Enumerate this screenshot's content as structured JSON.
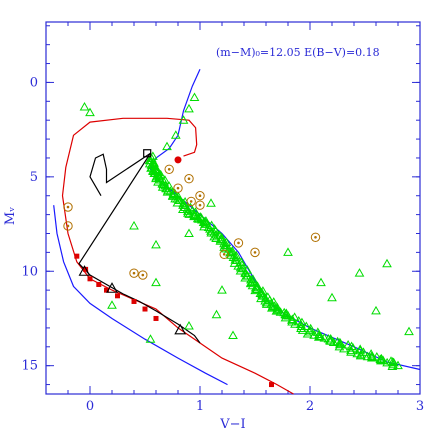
{
  "chart_data": {
    "type": "scatter",
    "title": "",
    "annotation": "(m−M)₀=12.05  E(B−V)=0.18",
    "xlabel": "V−I",
    "ylabel": "Mᵥ",
    "xlim": [
      -0.4,
      3.0
    ],
    "ylim": [
      16.5,
      -3.2
    ],
    "x_ticks": [
      0,
      1,
      2,
      3
    ],
    "y_ticks": [
      0,
      5,
      10,
      15
    ],
    "x_tick_labels": [
      "0",
      "1",
      "2",
      "3"
    ],
    "y_tick_labels": [
      "0",
      "5",
      "10",
      "15"
    ],
    "colors": {
      "axes": "#2b2bd6",
      "stars": "#00dd00",
      "isochrone_blue": "#1a1aff",
      "track_red": "#dd0000",
      "track_black": "#000000",
      "open_circles": "#b07000"
    },
    "series": [
      {
        "kind": "line",
        "color": "#1a1aff",
        "points": [
          [
            -0.33,
            6.5
          ],
          [
            -0.3,
            8.0
          ],
          [
            -0.24,
            9.5
          ],
          [
            -0.15,
            10.8
          ],
          [
            0.0,
            11.7
          ],
          [
            0.2,
            12.5
          ],
          [
            0.5,
            13.6
          ],
          [
            0.8,
            14.6
          ],
          [
            1.05,
            15.4
          ],
          [
            1.25,
            16.0
          ]
        ]
      },
      {
        "kind": "line",
        "color": "#1a1aff",
        "points": [
          [
            1.0,
            -0.7
          ],
          [
            0.93,
            0.2
          ],
          [
            0.85,
            1.5
          ],
          [
            0.8,
            2.8
          ],
          [
            0.72,
            3.5
          ],
          [
            0.6,
            4.0
          ],
          [
            0.55,
            4.6
          ],
          [
            0.62,
            5.2
          ],
          [
            0.8,
            6.0
          ],
          [
            1.0,
            7.0
          ],
          [
            1.2,
            8.0
          ],
          [
            1.35,
            9.0
          ],
          [
            1.5,
            10.5
          ],
          [
            1.62,
            11.6
          ],
          [
            1.75,
            12.2
          ],
          [
            2.0,
            13.0
          ],
          [
            2.4,
            14.0
          ],
          [
            2.7,
            14.8
          ],
          [
            3.0,
            15.2
          ]
        ]
      },
      {
        "kind": "line",
        "color": "#dd0000",
        "points": [
          [
            0.85,
            3.9
          ],
          [
            0.95,
            3.7
          ],
          [
            0.97,
            3.3
          ],
          [
            0.96,
            2.4
          ],
          [
            0.9,
            2.0
          ],
          [
            0.7,
            1.9
          ],
          [
            0.3,
            1.9
          ],
          [
            0.0,
            2.1
          ],
          [
            -0.15,
            2.8
          ],
          [
            -0.22,
            4.5
          ],
          [
            -0.25,
            6.0
          ],
          [
            -0.2,
            8.0
          ],
          [
            -0.12,
            9.5
          ],
          [
            0.0,
            10.4
          ],
          [
            0.2,
            11.0
          ],
          [
            0.4,
            11.5
          ],
          [
            0.6,
            12.0
          ],
          [
            0.8,
            13.0
          ],
          [
            1.0,
            13.8
          ],
          [
            1.2,
            14.6
          ],
          [
            1.5,
            15.4
          ],
          [
            1.7,
            16.0
          ],
          [
            1.85,
            16.5
          ]
        ]
      },
      {
        "kind": "line",
        "color": "#000000",
        "points": [
          [
            0.1,
            6.0
          ],
          [
            0.0,
            5.0
          ],
          [
            0.05,
            4.0
          ],
          [
            0.12,
            3.8
          ],
          [
            0.15,
            4.6
          ],
          [
            0.15,
            5.3
          ],
          [
            0.55,
            3.75
          ],
          [
            -0.1,
            9.6
          ],
          [
            0.0,
            10.2
          ],
          [
            0.15,
            10.7
          ],
          [
            0.3,
            11.2
          ],
          [
            0.45,
            11.6
          ],
          [
            0.6,
            12.1
          ],
          [
            0.8,
            12.8
          ],
          [
            0.95,
            13.4
          ],
          [
            1.0,
            13.8
          ]
        ]
      },
      {
        "kind": "scatter_band",
        "color": "#00dd00",
        "points": [
          [
            0.55,
            4.0
          ],
          [
            0.58,
            4.6
          ],
          [
            0.62,
            5.0
          ],
          [
            0.7,
            5.6
          ],
          [
            0.8,
            6.2
          ],
          [
            0.9,
            6.8
          ],
          [
            1.0,
            7.2
          ],
          [
            1.1,
            7.8
          ],
          [
            1.2,
            8.4
          ],
          [
            1.3,
            9.2
          ],
          [
            1.4,
            10.0
          ],
          [
            1.5,
            10.8
          ],
          [
            1.6,
            11.5
          ],
          [
            1.7,
            12.0
          ],
          [
            1.85,
            12.6
          ],
          [
            2.0,
            13.2
          ],
          [
            2.2,
            13.7
          ],
          [
            2.4,
            14.2
          ],
          [
            2.6,
            14.6
          ],
          [
            2.8,
            15.0
          ],
          [
            0.7,
            3.4
          ],
          [
            0.78,
            2.8
          ],
          [
            0.85,
            2.0
          ],
          [
            0.9,
            1.4
          ],
          [
            0.95,
            0.8
          ]
        ]
      },
      {
        "kind": "scatter",
        "color": "#00dd00",
        "points": [
          [
            0.0,
            1.6
          ],
          [
            -0.05,
            1.3
          ],
          [
            0.4,
            7.6
          ],
          [
            0.6,
            8.6
          ],
          [
            0.9,
            8.0
          ],
          [
            1.2,
            11.0
          ],
          [
            0.2,
            11.8
          ],
          [
            0.55,
            13.6
          ],
          [
            1.15,
            12.3
          ],
          [
            2.2,
            11.4
          ],
          [
            2.6,
            12.1
          ],
          [
            2.1,
            10.6
          ],
          [
            2.45,
            10.1
          ],
          [
            2.7,
            9.6
          ],
          [
            1.8,
            9.0
          ],
          [
            0.6,
            10.6
          ],
          [
            0.9,
            12.9
          ],
          [
            1.3,
            13.4
          ],
          [
            2.9,
            13.2
          ],
          [
            1.1,
            6.4
          ]
        ]
      },
      {
        "kind": "red_squares",
        "color": "#dd0000",
        "points": [
          [
            -0.12,
            9.2
          ],
          [
            -0.04,
            9.9
          ],
          [
            0.0,
            10.4
          ],
          [
            0.08,
            10.7
          ],
          [
            0.15,
            11.0
          ],
          [
            0.25,
            11.3
          ],
          [
            0.4,
            11.6
          ],
          [
            0.5,
            12.0
          ],
          [
            0.6,
            12.5
          ],
          [
            1.65,
            16.0
          ]
        ]
      },
      {
        "kind": "red_dot",
        "color": "#dd0000",
        "points": [
          [
            0.8,
            4.1
          ]
        ]
      },
      {
        "kind": "triangles",
        "color": "#000000",
        "points": [
          [
            -0.05,
            10.0
          ],
          [
            0.2,
            10.9
          ],
          [
            0.82,
            13.1
          ]
        ]
      },
      {
        "kind": "open_square",
        "color": "#000000",
        "points": [
          [
            0.52,
            3.75
          ]
        ]
      },
      {
        "kind": "open_circles",
        "color": "#b07000",
        "points": [
          [
            0.72,
            4.6
          ],
          [
            0.8,
            5.6
          ],
          [
            0.9,
            5.1
          ],
          [
            1.0,
            6.0
          ],
          [
            0.92,
            6.3
          ],
          [
            1.0,
            6.5
          ],
          [
            1.22,
            9.1
          ],
          [
            1.35,
            8.5
          ],
          [
            1.5,
            9.0
          ],
          [
            2.05,
            8.2
          ],
          [
            0.4,
            10.1
          ],
          [
            0.48,
            10.2
          ],
          [
            -0.2,
            6.6
          ],
          [
            -0.2,
            7.6
          ]
        ]
      }
    ]
  }
}
